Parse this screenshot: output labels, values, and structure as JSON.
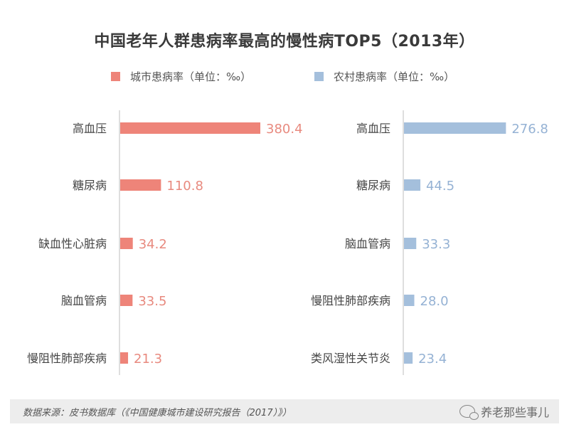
{
  "chart_data": [
    {
      "type": "bar",
      "orientation": "horizontal",
      "categories": [
        "高血压",
        "糖尿病",
        "缺血性心脏病",
        "脑血管病",
        "慢阻性肺部疾病"
      ],
      "values": [
        380.4,
        110.8,
        34.2,
        33.5,
        21.3
      ],
      "value_labels": [
        "380.4",
        "110.8",
        "34.2",
        "33.5",
        "21.3"
      ],
      "series_name": "城市患病率（单位：‰）",
      "color": "#ee8479"
    },
    {
      "type": "bar",
      "orientation": "horizontal",
      "categories": [
        "高血压",
        "糖尿病",
        "脑血管病",
        "慢阻性肺部疾病",
        "类风湿性关节炎"
      ],
      "values": [
        276.8,
        44.5,
        33.3,
        28.0,
        23.4
      ],
      "value_labels": [
        "276.8",
        "44.5",
        "33.3",
        "28.0",
        "23.4"
      ],
      "series_name": "农村患病率（单位：‰）",
      "color": "#a4bfdc"
    }
  ],
  "title": "中国老年人群患病率最高的慢性病TOP5（2013年）",
  "legend": {
    "city": "城市患病率（单位：‰）",
    "rural": "农村患病率（单位：‰）"
  },
  "footer": {
    "source": "数据来源：皮书数据库（《中国健康城市建设研究报告（2017）》）",
    "watermark": "养老那些事儿"
  },
  "colors": {
    "city_bar": "#ee8479",
    "city_label": "#e88a7f",
    "rural_bar": "#a4bfdc",
    "rural_label": "#95b2d4",
    "axis": "#bdbdbd"
  }
}
